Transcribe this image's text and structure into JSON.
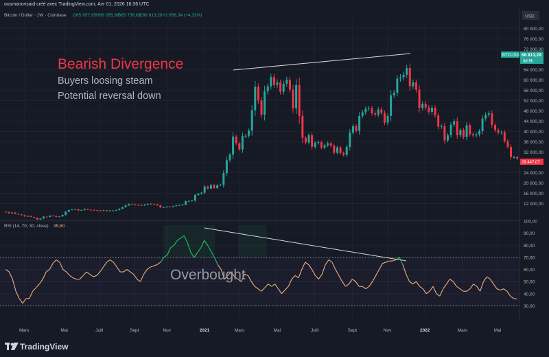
{
  "header": {
    "credit": "ousmanovsaid créé avec TradingView.com, Avr 01, 2026 16:36 UTC",
    "symbol_line": "Bitcoin / Dollar · 1W · Coinbase",
    "ohlc": {
      "open": "O65 957,95",
      "high": "H69 285,99",
      "low": "B65 736,63",
      "close": "C68 813,28",
      "change": "+2 856,34 (+4,33%)"
    },
    "currency_badge": "USD"
  },
  "price_tags": {
    "symbol": "BTCUSD",
    "last": "68 813,28",
    "countdown": "4d 8h",
    "other": "29 447,07"
  },
  "annotations": {
    "title": "Bearish Divergence",
    "line1": "Buyers loosing steam",
    "line2": "Potential reversal down",
    "overbought": "Overbought"
  },
  "rsi": {
    "label": "RSI (14, 70, 30, close)",
    "value": "35,60"
  },
  "footer": {
    "logo_text": "TradingView"
  },
  "colors": {
    "background": "#161a25",
    "up": "#26a69a",
    "down": "#f23645",
    "rsi_line": "#f0b27a",
    "rsi_overbought_line": "#22c55e"
  },
  "chart_data": [
    {
      "type": "candlestick",
      "title": "Bitcoin / Dollar · 1W · Coinbase",
      "y_ticks": [
        "80 000,00",
        "76 000,00",
        "72 000,00",
        "64 000,00",
        "60 000,00",
        "56 000,00",
        "52 000,00",
        "48 000,00",
        "44 000,00",
        "40 000,00",
        "36 000,00",
        "32 000,00",
        "28 000,00",
        "24 000,00",
        "20 000,00",
        "16 000,00",
        "12 000,00"
      ],
      "y_tick_values": [
        80000,
        76000,
        72000,
        64000,
        60000,
        56000,
        52000,
        48000,
        44000,
        40000,
        36000,
        32000,
        28000,
        24000,
        20000,
        16000,
        12000
      ],
      "ylim": [
        6000,
        83000
      ],
      "x_ticks": [
        "Mars",
        "Mai",
        "Juill",
        "Sept",
        "Nov",
        "2021",
        "Mars",
        "Mai",
        "Juill",
        "Sept",
        "Nov",
        "2022",
        "Mars",
        "Mai"
      ],
      "x_tick_dates": [
        "2020-03",
        "2020-05",
        "2020-07",
        "2020-09",
        "2020-11",
        "2021-01",
        "2021-03",
        "2021-05",
        "2021-07",
        "2021-09",
        "2021-11",
        "2022-01",
        "2022-03",
        "2022-05"
      ],
      "closes": [
        8700,
        8200,
        8500,
        8000,
        7800,
        7500,
        7000,
        7200,
        6800,
        6500,
        5800,
        6200,
        6900,
        6800,
        7300,
        7200,
        6800,
        7000,
        7600,
        8800,
        9500,
        9700,
        9800,
        9300,
        9500,
        9900,
        9600,
        9500,
        9400,
        9300,
        9200,
        9400,
        9100,
        9300,
        9300,
        9500,
        10000,
        10600,
        11300,
        11800,
        11700,
        11500,
        11400,
        11300,
        11600,
        11900,
        11800,
        11700,
        11300,
        10500,
        10600,
        10800,
        10700,
        11000,
        11300,
        11400,
        11600,
        12900,
        13000,
        13200,
        15300,
        15800,
        16200,
        18600,
        17800,
        19200,
        18000,
        19100,
        19300,
        23800,
        28800,
        31000,
        38000,
        35400,
        33000,
        38200,
        38300,
        40300,
        48200,
        57300,
        52000,
        46500,
        55500,
        57500,
        61100,
        58000,
        59000,
        55400,
        58500,
        60000,
        56200,
        49000,
        58000,
        46000,
        37500,
        35700,
        38500,
        34000,
        35600,
        35800,
        33700,
        34600,
        35400,
        34500,
        31700,
        33800,
        31600,
        30900,
        34000,
        39500,
        42000,
        40200,
        46000,
        47400,
        48800,
        49000,
        47000,
        46500,
        48500,
        47200,
        43400,
        46000,
        54000,
        55000,
        60500,
        61000,
        62000,
        64600,
        57500,
        59000,
        56200,
        49100,
        50700,
        49300,
        47600,
        49200,
        46200,
        41800,
        42000,
        36500,
        38500,
        42600,
        44000,
        38500,
        40500,
        37800,
        42400,
        38900,
        38400,
        38800,
        40100,
        45000,
        46500,
        47000,
        42500,
        40500,
        39500,
        39700,
        36300,
        34000,
        30000,
        30000,
        29400
      ]
    },
    {
      "type": "line",
      "title": "RSI (14, 70, 30, close)",
      "y_ticks": [
        "100,00",
        "90,00",
        "80,00",
        "70,00",
        "60,00",
        "50,00",
        "40,00",
        "30,00"
      ],
      "y_tick_values": [
        100,
        90,
        80,
        70,
        60,
        50,
        40,
        30
      ],
      "ylim": [
        20,
        100
      ],
      "levels": [
        70,
        50,
        30
      ],
      "values": [
        60,
        58,
        52,
        42,
        36,
        32,
        36,
        36,
        42,
        45,
        48,
        52,
        58,
        60,
        65,
        68,
        66,
        60,
        58,
        55,
        53,
        52,
        52,
        55,
        58,
        56,
        54,
        55,
        58,
        62,
        66,
        68,
        66,
        62,
        58,
        58,
        60,
        58,
        56,
        52,
        50,
        56,
        60,
        62,
        63,
        64,
        66,
        70,
        72,
        78,
        80,
        84,
        86,
        88,
        82,
        74,
        70,
        74,
        78,
        84,
        80,
        75,
        70,
        64,
        60,
        52,
        55,
        58,
        54,
        52,
        50,
        56,
        55,
        50,
        46,
        44,
        42,
        45,
        48,
        46,
        48,
        44,
        40,
        43,
        46,
        52,
        55,
        53,
        60,
        66,
        64,
        60,
        55,
        52,
        56,
        64,
        68,
        66,
        60,
        55,
        50,
        46,
        48,
        52,
        50,
        46,
        46,
        44,
        46,
        50,
        55,
        60,
        65,
        66,
        67,
        67,
        68,
        70,
        64,
        56,
        50,
        48,
        50,
        46,
        44,
        40,
        42,
        46,
        40,
        38,
        44,
        48,
        52,
        50,
        46,
        44,
        42,
        42,
        44,
        48,
        46,
        42,
        50,
        54,
        52,
        48,
        44,
        43,
        44,
        42,
        38,
        36,
        35.6
      ]
    }
  ]
}
